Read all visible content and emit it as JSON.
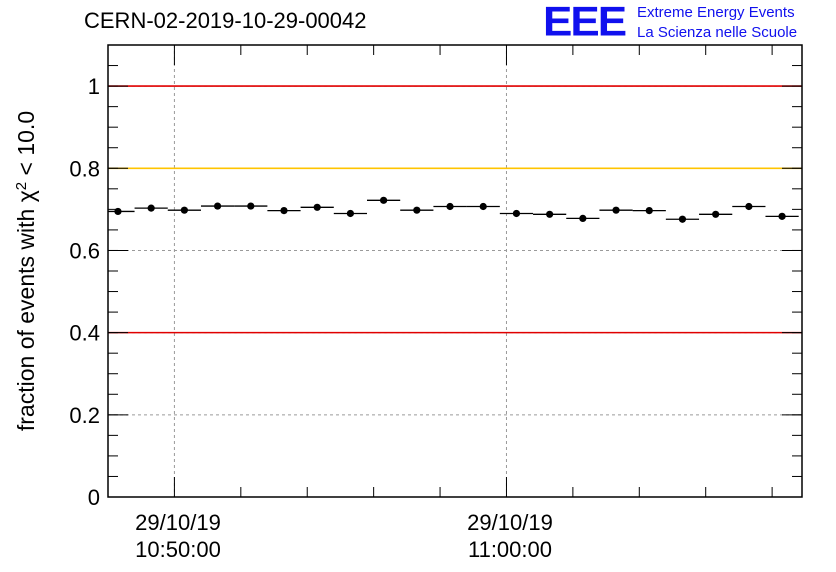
{
  "chart_data": {
    "type": "scatter",
    "title": "CERN-02-2019-10-29-00042",
    "ylabel_prefix": "fraction of events with ",
    "ylabel_symbol": "χ",
    "ylabel_superscript": "2",
    "ylabel_suffix": " < 10.0",
    "ylim": [
      0,
      1.1
    ],
    "yticks": [
      0,
      0.2,
      0.4,
      0.6,
      0.8,
      1
    ],
    "ytick_labels": [
      "0",
      "0.2",
      "0.4",
      "0.6",
      "0.8",
      "1"
    ],
    "xlim_minutes": [
      48,
      68.9
    ],
    "xticks_major_minutes": [
      50,
      60
    ],
    "xtick_labels": [
      {
        "date": "29/10/19",
        "time": "10:50:00"
      },
      {
        "date": "29/10/19",
        "time": "11:00:00"
      }
    ],
    "x_bin_width_minutes": 1,
    "x_centers_minutes": [
      48.3,
      49.3,
      50.3,
      51.3,
      52.3,
      53.3,
      54.3,
      55.3,
      56.3,
      57.3,
      58.3,
      59.3,
      60.3,
      61.3,
      62.3,
      63.3,
      64.3,
      65.3,
      66.3,
      67.3,
      68.3
    ],
    "values": [
      0.695,
      0.703,
      0.698,
      0.708,
      0.708,
      0.697,
      0.705,
      0.69,
      0.722,
      0.698,
      0.707,
      0.707,
      0.69,
      0.688,
      0.678,
      0.698,
      0.697,
      0.676,
      0.688,
      0.707,
      0.683
    ],
    "reference_lines": [
      {
        "y": 1.0,
        "color": "#e00000"
      },
      {
        "y": 0.8,
        "color": "#ffc400"
      },
      {
        "y": 0.4,
        "color": "#e00000"
      }
    ],
    "grid": true
  },
  "logo": {
    "mark": "EEE",
    "line1": "Extreme Energy Events",
    "line2": "La Scienza nelle Scuole",
    "color": "#1010ee"
  }
}
